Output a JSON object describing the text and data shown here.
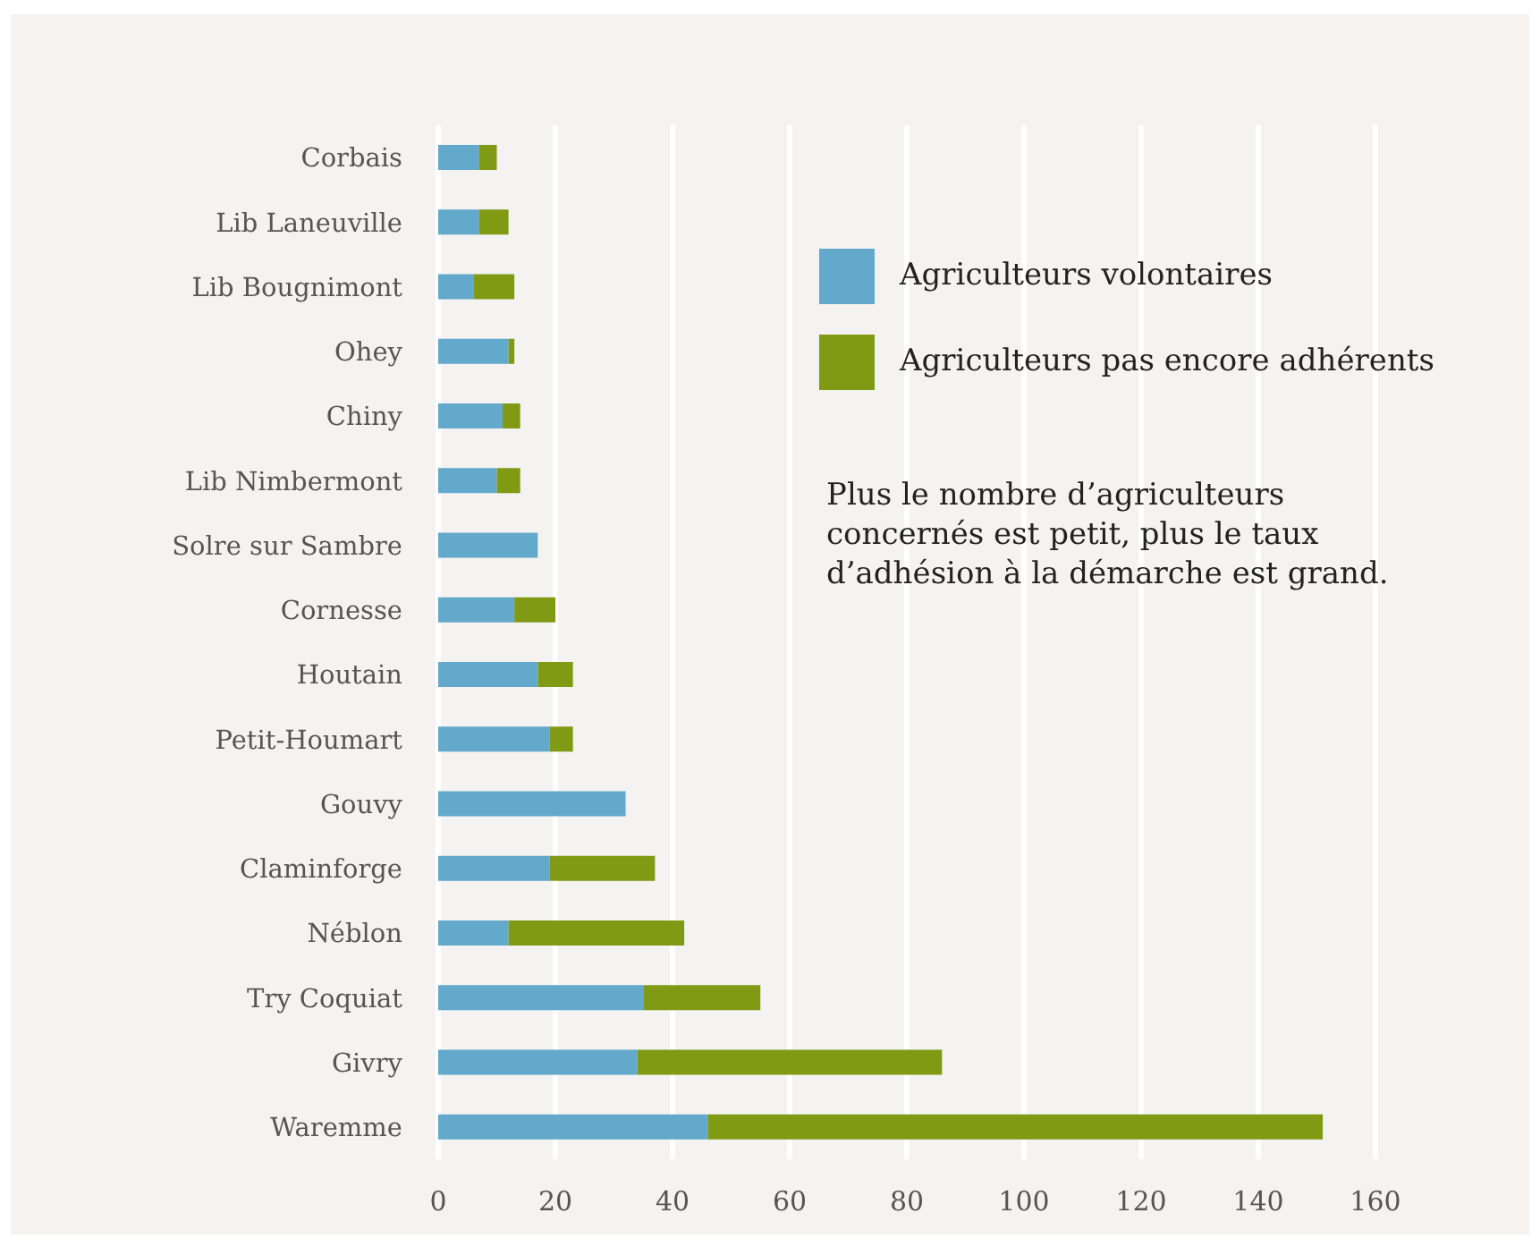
{
  "chart_data": {
    "type": "bar",
    "orientation": "horizontal",
    "stacked": true,
    "categories": [
      "Corbais",
      "Lib Laneuville",
      "Lib Bougnimont",
      "Ohey",
      "Chiny",
      "Lib Nimbermont",
      "Solre sur Sambre",
      "Cornesse",
      "Houtain",
      "Petit-Houmart",
      "Gouvy",
      "Claminforge",
      "Néblon",
      "Try Coquiat",
      "Givry",
      "Waremme"
    ],
    "series": [
      {
        "name": "Agriculteurs volontaires",
        "color": "#62a9cc",
        "values": [
          7,
          7,
          6,
          12,
          11,
          10,
          17,
          13,
          17,
          19,
          32,
          19,
          12,
          35,
          34,
          46
        ]
      },
      {
        "name": "Agriculteurs pas encore adhérents",
        "color": "#809a14",
        "values": [
          3,
          5,
          7,
          1,
          3,
          4,
          0,
          7,
          6,
          4,
          0,
          18,
          30,
          20,
          52,
          105
        ]
      }
    ],
    "xlim": [
      0,
      160
    ],
    "xticks": [
      0,
      20,
      40,
      60,
      80,
      100,
      120,
      140,
      160
    ],
    "grid": "x",
    "legend": "top right",
    "annotations": [
      "Plus le nombre d’agriculteurs concernés est petit, plus le taux d’adhésion à la démarche est grand."
    ]
  }
}
